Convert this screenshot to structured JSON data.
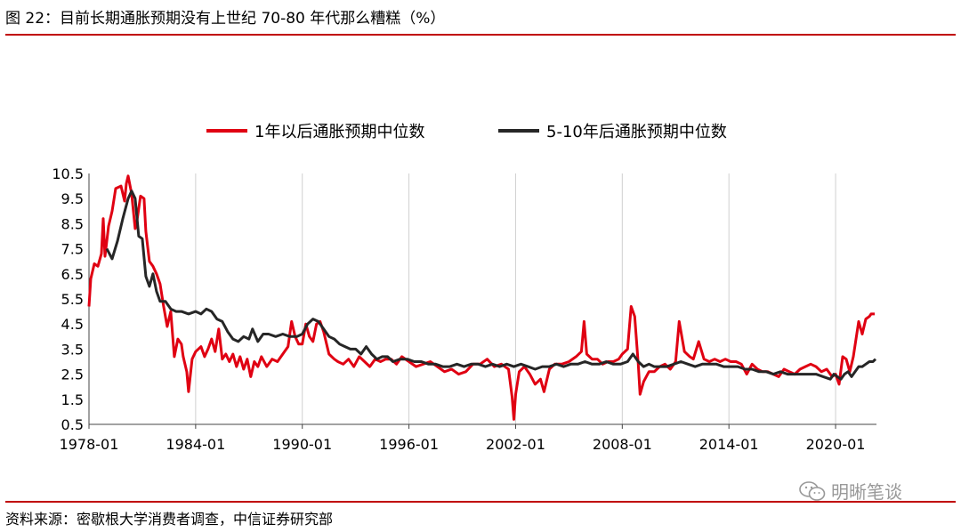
{
  "header": {
    "title": "图 22：目前长期通胀预期没有上世纪 70-80 年代那么糟糕（%）"
  },
  "footer": {
    "source": "资料来源：密歇根大学消费者调查，中信证券研究部",
    "watermark": "明晰笔谈",
    "watermark_icon": "wechat-icon"
  },
  "colors": {
    "series1": "#e00012",
    "series2": "#262626",
    "rule": "#c00000",
    "grid": "#d0d0d0"
  },
  "chart_data": {
    "type": "line",
    "title": "",
    "xlabel": "",
    "ylabel": "",
    "legend_position": "top",
    "grid": "vertical",
    "xlim": [
      1978.0,
      2022.3
    ],
    "ylim": [
      0.5,
      10.5
    ],
    "xticks": [
      "1978-01",
      "1984-01",
      "1990-01",
      "1996-01",
      "2002-01",
      "2008-01",
      "2014-01",
      "2020-01"
    ],
    "yticks": [
      "10.5",
      "9.5",
      "8.5",
      "7.5",
      "6.5",
      "5.5",
      "4.5",
      "3.5",
      "2.5",
      "1.5",
      "0.5"
    ],
    "series": [
      {
        "name": "1年以后通胀预期中位数",
        "color": "#e00012",
        "points": [
          [
            1978.0,
            5.2
          ],
          [
            1978.1,
            6.3
          ],
          [
            1978.3,
            6.9
          ],
          [
            1978.5,
            6.8
          ],
          [
            1978.7,
            7.3
          ],
          [
            1978.8,
            8.7
          ],
          [
            1978.9,
            7.2
          ],
          [
            1979.1,
            8.4
          ],
          [
            1979.3,
            9.0
          ],
          [
            1979.5,
            9.9
          ],
          [
            1979.8,
            10.0
          ],
          [
            1980.0,
            9.4
          ],
          [
            1980.1,
            10.1
          ],
          [
            1980.2,
            10.4
          ],
          [
            1980.4,
            9.7
          ],
          [
            1980.6,
            8.3
          ],
          [
            1980.7,
            8.6
          ],
          [
            1980.9,
            9.6
          ],
          [
            1981.1,
            9.5
          ],
          [
            1981.2,
            8.2
          ],
          [
            1981.4,
            7.0
          ],
          [
            1981.6,
            6.8
          ],
          [
            1981.8,
            6.5
          ],
          [
            1982.0,
            6.1
          ],
          [
            1982.2,
            5.2
          ],
          [
            1982.4,
            4.4
          ],
          [
            1982.6,
            5.0
          ],
          [
            1982.8,
            3.2
          ],
          [
            1983.0,
            3.9
          ],
          [
            1983.2,
            3.7
          ],
          [
            1983.3,
            3.2
          ],
          [
            1983.5,
            2.6
          ],
          [
            1983.6,
            1.8
          ],
          [
            1983.8,
            3.1
          ],
          [
            1984.0,
            3.4
          ],
          [
            1984.3,
            3.6
          ],
          [
            1984.5,
            3.2
          ],
          [
            1984.7,
            3.5
          ],
          [
            1984.9,
            3.9
          ],
          [
            1985.1,
            3.4
          ],
          [
            1985.3,
            4.3
          ],
          [
            1985.5,
            3.1
          ],
          [
            1985.7,
            3.3
          ],
          [
            1985.9,
            3.0
          ],
          [
            1986.1,
            3.3
          ],
          [
            1986.3,
            2.8
          ],
          [
            1986.5,
            3.2
          ],
          [
            1986.7,
            2.7
          ],
          [
            1986.9,
            3.1
          ],
          [
            1987.1,
            2.4
          ],
          [
            1987.3,
            3.0
          ],
          [
            1987.5,
            2.8
          ],
          [
            1987.7,
            3.2
          ],
          [
            1988.0,
            2.8
          ],
          [
            1988.3,
            3.1
          ],
          [
            1988.6,
            3.0
          ],
          [
            1988.9,
            3.3
          ],
          [
            1989.2,
            3.6
          ],
          [
            1989.4,
            4.6
          ],
          [
            1989.6,
            4.0
          ],
          [
            1989.8,
            3.7
          ],
          [
            1990.0,
            3.7
          ],
          [
            1990.2,
            4.5
          ],
          [
            1990.4,
            4.0
          ],
          [
            1990.6,
            3.8
          ],
          [
            1990.8,
            4.5
          ],
          [
            1991.0,
            4.6
          ],
          [
            1991.2,
            4.2
          ],
          [
            1991.5,
            3.3
          ],
          [
            1991.8,
            3.1
          ],
          [
            1992.0,
            3.0
          ],
          [
            1992.3,
            2.9
          ],
          [
            1992.6,
            3.1
          ],
          [
            1992.9,
            2.8
          ],
          [
            1993.2,
            3.2
          ],
          [
            1993.5,
            3.0
          ],
          [
            1993.8,
            2.8
          ],
          [
            1994.1,
            3.1
          ],
          [
            1994.4,
            3.0
          ],
          [
            1994.7,
            3.1
          ],
          [
            1995.0,
            3.1
          ],
          [
            1995.3,
            2.9
          ],
          [
            1995.6,
            3.2
          ],
          [
            1996.0,
            3.0
          ],
          [
            1996.4,
            2.8
          ],
          [
            1996.8,
            2.9
          ],
          [
            1997.2,
            3.0
          ],
          [
            1997.6,
            2.8
          ],
          [
            1998.0,
            2.6
          ],
          [
            1998.4,
            2.7
          ],
          [
            1998.8,
            2.5
          ],
          [
            1999.2,
            2.6
          ],
          [
            1999.6,
            2.9
          ],
          [
            2000.0,
            2.9
          ],
          [
            2000.4,
            3.1
          ],
          [
            2000.8,
            2.8
          ],
          [
            2001.2,
            2.9
          ],
          [
            2001.6,
            2.7
          ],
          [
            2001.8,
            1.6
          ],
          [
            2001.9,
            0.7
          ],
          [
            2002.0,
            1.7
          ],
          [
            2002.2,
            2.6
          ],
          [
            2002.5,
            2.8
          ],
          [
            2002.8,
            2.5
          ],
          [
            2003.1,
            2.1
          ],
          [
            2003.4,
            2.3
          ],
          [
            2003.6,
            1.8
          ],
          [
            2003.9,
            2.7
          ],
          [
            2004.2,
            2.9
          ],
          [
            2004.6,
            2.9
          ],
          [
            2005.0,
            3.0
          ],
          [
            2005.4,
            3.2
          ],
          [
            2005.7,
            3.4
          ],
          [
            2005.85,
            4.6
          ],
          [
            2006.0,
            3.3
          ],
          [
            2006.3,
            3.1
          ],
          [
            2006.6,
            3.1
          ],
          [
            2006.9,
            2.9
          ],
          [
            2007.2,
            3.0
          ],
          [
            2007.5,
            3.0
          ],
          [
            2007.8,
            3.1
          ],
          [
            2008.0,
            3.3
          ],
          [
            2008.3,
            3.5
          ],
          [
            2008.5,
            5.2
          ],
          [
            2008.7,
            4.8
          ],
          [
            2008.9,
            2.9
          ],
          [
            2009.0,
            1.7
          ],
          [
            2009.2,
            2.2
          ],
          [
            2009.5,
            2.6
          ],
          [
            2009.8,
            2.6
          ],
          [
            2010.1,
            2.8
          ],
          [
            2010.4,
            2.9
          ],
          [
            2010.7,
            2.7
          ],
          [
            2011.0,
            3.0
          ],
          [
            2011.2,
            4.6
          ],
          [
            2011.5,
            3.4
          ],
          [
            2011.8,
            3.2
          ],
          [
            2012.0,
            3.1
          ],
          [
            2012.3,
            3.8
          ],
          [
            2012.6,
            3.1
          ],
          [
            2012.9,
            3.0
          ],
          [
            2013.2,
            3.1
          ],
          [
            2013.5,
            3.0
          ],
          [
            2013.8,
            3.1
          ],
          [
            2014.1,
            3.0
          ],
          [
            2014.4,
            3.0
          ],
          [
            2014.7,
            2.9
          ],
          [
            2015.0,
            2.5
          ],
          [
            2015.3,
            2.9
          ],
          [
            2015.6,
            2.7
          ],
          [
            2015.9,
            2.6
          ],
          [
            2016.2,
            2.6
          ],
          [
            2016.5,
            2.5
          ],
          [
            2016.8,
            2.4
          ],
          [
            2017.1,
            2.7
          ],
          [
            2017.4,
            2.6
          ],
          [
            2017.7,
            2.5
          ],
          [
            2018.0,
            2.7
          ],
          [
            2018.3,
            2.8
          ],
          [
            2018.6,
            2.9
          ],
          [
            2018.9,
            2.8
          ],
          [
            2019.2,
            2.6
          ],
          [
            2019.5,
            2.7
          ],
          [
            2019.8,
            2.4
          ],
          [
            2020.0,
            2.5
          ],
          [
            2020.2,
            2.1
          ],
          [
            2020.4,
            3.2
          ],
          [
            2020.6,
            3.1
          ],
          [
            2020.8,
            2.6
          ],
          [
            2021.0,
            3.2
          ],
          [
            2021.3,
            4.6
          ],
          [
            2021.5,
            4.1
          ],
          [
            2021.7,
            4.7
          ],
          [
            2021.9,
            4.8
          ],
          [
            2022.0,
            4.9
          ],
          [
            2022.2,
            4.9
          ]
        ]
      },
      {
        "name": "5-10年后通胀预期中位数",
        "color": "#262626",
        "points": [
          [
            1979.0,
            7.5
          ],
          [
            1979.3,
            7.1
          ],
          [
            1979.6,
            7.8
          ],
          [
            1979.9,
            8.7
          ],
          [
            1980.2,
            9.5
          ],
          [
            1980.4,
            9.8
          ],
          [
            1980.6,
            9.5
          ],
          [
            1980.8,
            8.0
          ],
          [
            1981.0,
            7.9
          ],
          [
            1981.2,
            6.4
          ],
          [
            1981.4,
            6.0
          ],
          [
            1981.6,
            6.5
          ],
          [
            1981.8,
            5.8
          ],
          [
            1982.0,
            5.4
          ],
          [
            1982.3,
            5.4
          ],
          [
            1982.6,
            5.1
          ],
          [
            1982.9,
            5.0
          ],
          [
            1983.2,
            5.0
          ],
          [
            1983.6,
            4.9
          ],
          [
            1984.0,
            5.0
          ],
          [
            1984.3,
            4.9
          ],
          [
            1984.6,
            5.1
          ],
          [
            1984.9,
            5.0
          ],
          [
            1985.2,
            4.7
          ],
          [
            1985.5,
            4.6
          ],
          [
            1985.8,
            4.2
          ],
          [
            1986.1,
            3.9
          ],
          [
            1986.4,
            3.8
          ],
          [
            1986.7,
            4.0
          ],
          [
            1987.0,
            3.9
          ],
          [
            1987.2,
            4.3
          ],
          [
            1987.5,
            3.8
          ],
          [
            1987.8,
            4.1
          ],
          [
            1988.1,
            4.1
          ],
          [
            1988.5,
            4.0
          ],
          [
            1988.9,
            4.1
          ],
          [
            1989.3,
            4.0
          ],
          [
            1989.7,
            4.0
          ],
          [
            1990.0,
            4.1
          ],
          [
            1990.3,
            4.5
          ],
          [
            1990.6,
            4.7
          ],
          [
            1990.9,
            4.6
          ],
          [
            1991.2,
            4.3
          ],
          [
            1991.5,
            4.0
          ],
          [
            1991.8,
            3.9
          ],
          [
            1992.1,
            3.7
          ],
          [
            1992.4,
            3.6
          ],
          [
            1992.7,
            3.5
          ],
          [
            1993.0,
            3.5
          ],
          [
            1993.3,
            3.3
          ],
          [
            1993.6,
            3.6
          ],
          [
            1993.9,
            3.3
          ],
          [
            1994.2,
            3.1
          ],
          [
            1994.5,
            3.2
          ],
          [
            1994.8,
            3.2
          ],
          [
            1995.1,
            3.0
          ],
          [
            1995.5,
            3.1
          ],
          [
            1995.9,
            3.1
          ],
          [
            1996.3,
            3.0
          ],
          [
            1996.7,
            3.0
          ],
          [
            1997.1,
            2.9
          ],
          [
            1997.5,
            2.9
          ],
          [
            1997.9,
            2.8
          ],
          [
            1998.3,
            2.8
          ],
          [
            1998.7,
            2.9
          ],
          [
            1999.1,
            2.8
          ],
          [
            1999.5,
            2.9
          ],
          [
            1999.9,
            2.9
          ],
          [
            2000.3,
            2.8
          ],
          [
            2000.7,
            2.9
          ],
          [
            2001.1,
            2.8
          ],
          [
            2001.5,
            2.9
          ],
          [
            2001.9,
            2.8
          ],
          [
            2002.3,
            2.9
          ],
          [
            2002.7,
            2.8
          ],
          [
            2003.1,
            2.7
          ],
          [
            2003.5,
            2.8
          ],
          [
            2003.9,
            2.8
          ],
          [
            2004.3,
            2.9
          ],
          [
            2004.7,
            2.8
          ],
          [
            2005.1,
            2.9
          ],
          [
            2005.5,
            2.9
          ],
          [
            2005.9,
            3.0
          ],
          [
            2006.3,
            2.9
          ],
          [
            2006.7,
            2.9
          ],
          [
            2007.1,
            3.0
          ],
          [
            2007.5,
            2.9
          ],
          [
            2007.9,
            2.9
          ],
          [
            2008.3,
            3.0
          ],
          [
            2008.6,
            3.3
          ],
          [
            2008.9,
            3.0
          ],
          [
            2009.2,
            2.8
          ],
          [
            2009.5,
            2.9
          ],
          [
            2009.8,
            2.8
          ],
          [
            2010.1,
            2.8
          ],
          [
            2010.5,
            2.8
          ],
          [
            2010.9,
            2.9
          ],
          [
            2011.3,
            3.0
          ],
          [
            2011.7,
            2.9
          ],
          [
            2012.1,
            2.8
          ],
          [
            2012.5,
            2.9
          ],
          [
            2012.9,
            2.9
          ],
          [
            2013.3,
            2.9
          ],
          [
            2013.7,
            2.8
          ],
          [
            2014.1,
            2.8
          ],
          [
            2014.5,
            2.8
          ],
          [
            2014.9,
            2.7
          ],
          [
            2015.3,
            2.7
          ],
          [
            2015.7,
            2.6
          ],
          [
            2016.1,
            2.6
          ],
          [
            2016.5,
            2.5
          ],
          [
            2016.9,
            2.6
          ],
          [
            2017.3,
            2.5
          ],
          [
            2017.7,
            2.5
          ],
          [
            2018.1,
            2.5
          ],
          [
            2018.5,
            2.5
          ],
          [
            2018.9,
            2.5
          ],
          [
            2019.3,
            2.4
          ],
          [
            2019.7,
            2.3
          ],
          [
            2019.9,
            2.5
          ],
          [
            2020.1,
            2.4
          ],
          [
            2020.3,
            2.3
          ],
          [
            2020.5,
            2.5
          ],
          [
            2020.7,
            2.6
          ],
          [
            2020.9,
            2.4
          ],
          [
            2021.1,
            2.6
          ],
          [
            2021.3,
            2.8
          ],
          [
            2021.5,
            2.8
          ],
          [
            2021.7,
            2.9
          ],
          [
            2021.9,
            3.0
          ],
          [
            2022.1,
            3.0
          ],
          [
            2022.25,
            3.1
          ]
        ]
      }
    ]
  }
}
